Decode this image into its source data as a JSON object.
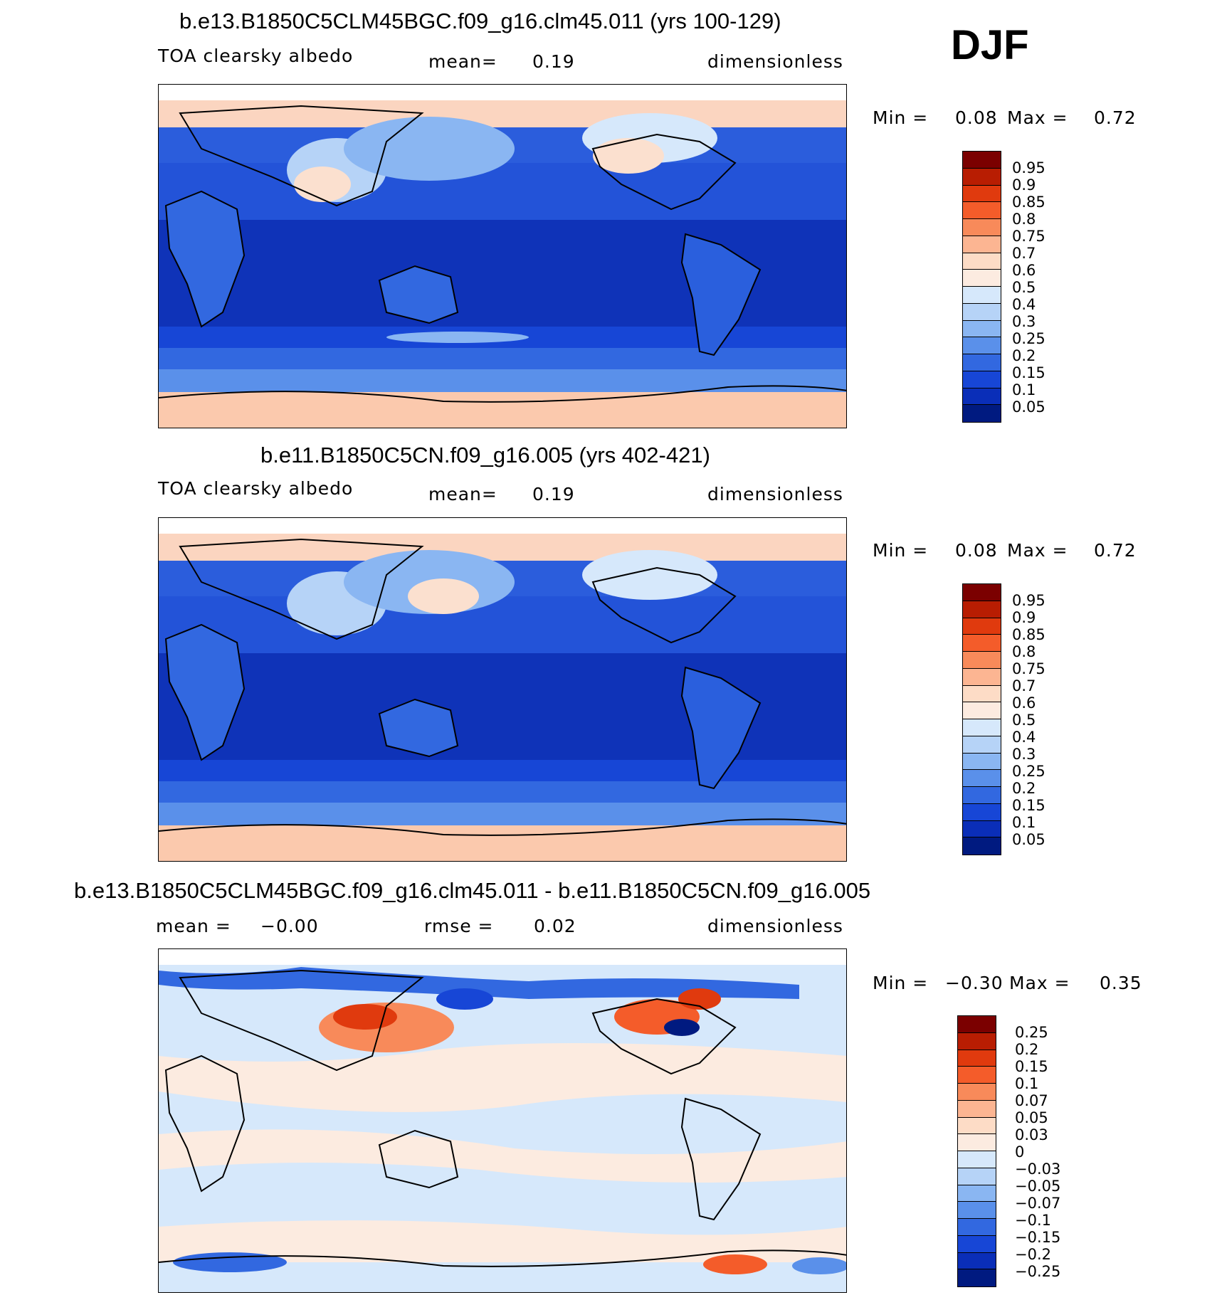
{
  "season": "DJF",
  "panels": [
    {
      "title": "b.e13.B1850C5CLM45BGC.f09_g16.clm45.011 (yrs 100-129)",
      "variable": "TOA clearsky albedo",
      "stat1": "mean=",
      "stat1_value": "0.19",
      "units": "dimensionless",
      "min_label": "Min =",
      "min_value": "0.08",
      "max_label": "Max =",
      "max_value": "0.72",
      "colorbar": {
        "labels": [
          "0.95",
          "0.9",
          "0.85",
          "0.8",
          "0.75",
          "0.7",
          "0.6",
          "0.5",
          "0.4",
          "0.3",
          "0.25",
          "0.2",
          "0.15",
          "0.1",
          "0.05"
        ],
        "colors": [
          "#7b0000",
          "#b81d02",
          "#e03a0e",
          "#f45c2a",
          "#f88a5a",
          "#fcb592",
          "#fddcc6",
          "#fcebe0",
          "#d6e8fb",
          "#b6d3f7",
          "#8ab6f2",
          "#5a90ea",
          "#3268e0",
          "#1746d6",
          "#0a2eb8",
          "#001a80"
        ]
      }
    },
    {
      "title": "b.e11.B1850C5CN.f09_g16.005 (yrs 402-421)",
      "variable": "TOA clearsky albedo",
      "stat1": "mean=",
      "stat1_value": "0.19",
      "units": "dimensionless",
      "min_label": "Min =",
      "min_value": "0.08",
      "max_label": "Max =",
      "max_value": "0.72",
      "colorbar": {
        "labels": [
          "0.95",
          "0.9",
          "0.85",
          "0.8",
          "0.75",
          "0.7",
          "0.6",
          "0.5",
          "0.4",
          "0.3",
          "0.25",
          "0.2",
          "0.15",
          "0.1",
          "0.05"
        ],
        "colors": [
          "#7b0000",
          "#b81d02",
          "#e03a0e",
          "#f45c2a",
          "#f88a5a",
          "#fcb592",
          "#fddcc6",
          "#fcebe0",
          "#d6e8fb",
          "#b6d3f7",
          "#8ab6f2",
          "#5a90ea",
          "#3268e0",
          "#1746d6",
          "#0a2eb8",
          "#001a80"
        ]
      }
    },
    {
      "title": "b.e13.B1850C5CLM45BGC.f09_g16.clm45.011 - b.e11.B1850C5CN.f09_g16.005",
      "stat1": "mean =",
      "stat1_value": "−0.00",
      "stat2": "rmse =",
      "stat2_value": "0.02",
      "units": "dimensionless",
      "min_label": "Min =",
      "min_value": "−0.30",
      "max_label": "Max =",
      "max_value": "0.35",
      "colorbar": {
        "labels": [
          "0.25",
          "0.2",
          "0.15",
          "0.1",
          "0.07",
          "0.05",
          "0.03",
          "0",
          "−0.03",
          "−0.05",
          "−0.07",
          "−0.1",
          "−0.15",
          "−0.2",
          "−0.25"
        ],
        "colors": [
          "#7b0000",
          "#b81d02",
          "#e03a0e",
          "#f45c2a",
          "#f88a5a",
          "#fcb592",
          "#fddcc6",
          "#fcebe0",
          "#d6e8fb",
          "#b6d3f7",
          "#8ab6f2",
          "#5a90ea",
          "#3268e0",
          "#1746d6",
          "#0a2eb8",
          "#001a80"
        ]
      }
    }
  ]
}
